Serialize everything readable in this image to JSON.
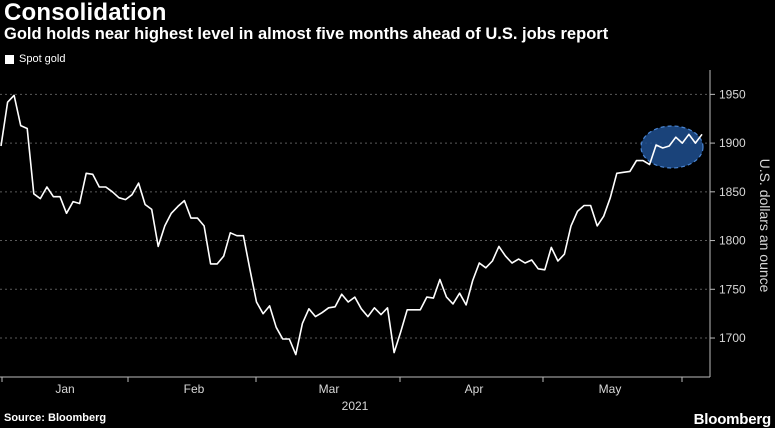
{
  "header": {
    "title": "Consolidation",
    "subtitle": "Gold holds near highest level in almost five months ahead of U.S. jobs report"
  },
  "footer": {
    "source": "Source: Bloomberg",
    "brand": "Bloomberg"
  },
  "colors": {
    "background": "#000000",
    "line": "#ffffff",
    "gridline": "#5a5a5a",
    "highlight_fill": "#1f4f8f",
    "highlight_stroke": "#4a86d4"
  },
  "chart_data": {
    "type": "line",
    "title": "Consolidation",
    "subtitle": "Gold holds near highest level in almost five months ahead of U.S. jobs report",
    "ylabel": "U.S. dollars an ounce",
    "xlabel": "2021",
    "ylim": [
      1660,
      1975
    ],
    "y_ticks": [
      1700,
      1750,
      1800,
      1850,
      1900,
      1950
    ],
    "y_axis_position": "right",
    "x_ticks": [
      "Jan",
      "Feb",
      "Mar",
      "Apr",
      "May"
    ],
    "year_label": "2021",
    "grid": "horizontal dashed",
    "legend": {
      "position": "top-left",
      "entries": [
        "Spot gold"
      ]
    },
    "series": [
      {
        "name": "Spot gold",
        "values": [
          1897,
          1942,
          1949,
          1918,
          1915,
          1848,
          1843,
          1855,
          1845,
          1845,
          1828,
          1840,
          1838,
          1869,
          1868,
          1855,
          1855,
          1850,
          1844,
          1842,
          1847,
          1859,
          1837,
          1832,
          1794,
          1815,
          1828,
          1835,
          1841,
          1823,
          1823,
          1815,
          1776,
          1776,
          1784,
          1808,
          1805,
          1805,
          1770,
          1737,
          1725,
          1733,
          1711,
          1699,
          1699,
          1683,
          1715,
          1730,
          1722,
          1726,
          1731,
          1732,
          1745,
          1737,
          1742,
          1730,
          1722,
          1731,
          1724,
          1731,
          1685,
          1706,
          1729,
          1729,
          1729,
          1742,
          1741,
          1760,
          1742,
          1735,
          1746,
          1734,
          1759,
          1777,
          1772,
          1779,
          1794,
          1784,
          1777,
          1781,
          1777,
          1780,
          1771,
          1770,
          1793,
          1779,
          1786,
          1815,
          1830,
          1836,
          1836,
          1815,
          1825,
          1844,
          1869,
          1870,
          1871,
          1882,
          1882,
          1878,
          1898,
          1895,
          1897,
          1906,
          1900,
          1909,
          1900,
          1909
        ]
      }
    ],
    "highlight": {
      "shape": "ellipse",
      "region": "last week of May",
      "note": "highest level in almost five months"
    }
  }
}
